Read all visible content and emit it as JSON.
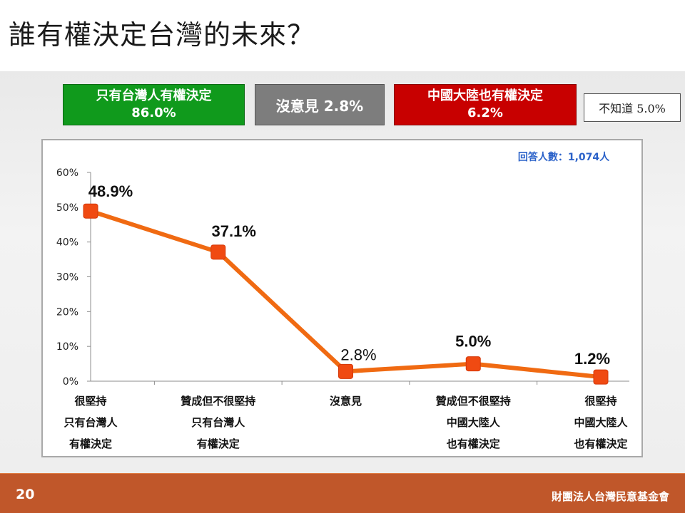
{
  "slide": {
    "title": "誰有權決定台灣的未來？",
    "page_number": "20",
    "organization": "財團法人台灣民意基金會"
  },
  "summary": {
    "taiwan_label": "只有台灣人有權決定",
    "taiwan_value": "86.0%",
    "no_opinion": "沒意見 2.8%",
    "china_label": "中國大陸也有權決定",
    "china_value": "6.2%",
    "dont_know": "不知道 5.0%"
  },
  "respondents": "回答人數：1,074人",
  "colors": {
    "line": "#f06a12",
    "marker": "#f04a12",
    "green": "#109a1c",
    "gray": "#7d7d7d",
    "red": "#c80000",
    "respondents": "#2b62c9",
    "footer": "#c0572a"
  },
  "chart_data": {
    "type": "line",
    "ylim": [
      0,
      60
    ],
    "yticks": [
      "0%",
      "10%",
      "20%",
      "30%",
      "40%",
      "50%",
      "60%"
    ],
    "grid": false,
    "categories": [
      [
        "很堅持",
        "只有台灣人",
        "有權決定"
      ],
      [
        "贊成但不很堅持",
        "只有台灣人",
        "有權決定"
      ],
      [
        "沒意見"
      ],
      [
        "贊成但不很堅持",
        "中國大陸人",
        "也有權決定"
      ],
      [
        "很堅持",
        "中國大陸人",
        "也有權決定"
      ]
    ],
    "values": [
      48.9,
      37.1,
      2.8,
      5.0,
      1.2
    ],
    "data_labels": [
      "48.9%",
      "37.1%",
      "2.8%",
      "5.0%",
      "1.2%"
    ],
    "label_styles": [
      "bold",
      "bold",
      "normal",
      "bold",
      "bold"
    ]
  }
}
